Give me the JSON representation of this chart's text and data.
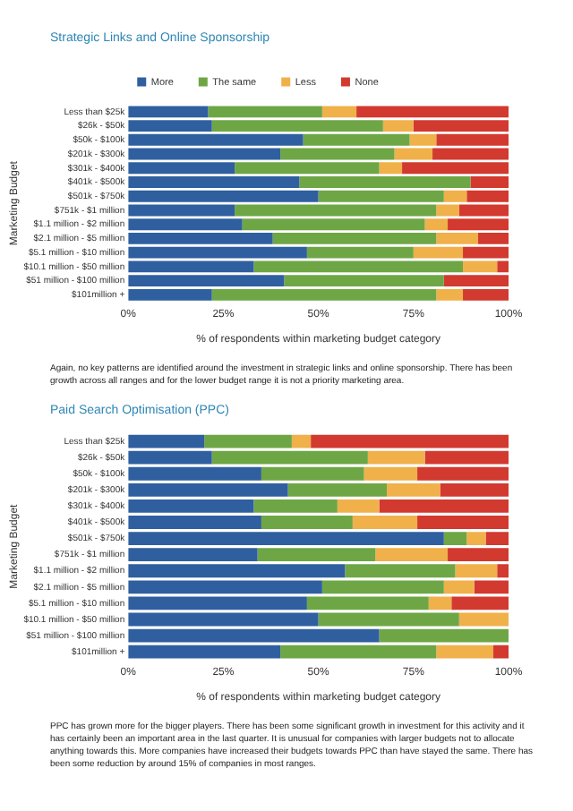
{
  "chart_data": [
    {
      "type": "bar",
      "orientation": "horizontal",
      "stacked": true,
      "title": "Strategic Links and Online Sponsorship",
      "xlabel": "% of respondents within marketing budget category",
      "ylabel": "Marketing Budget",
      "categories": [
        "Less than $25k",
        "$26k - $50k",
        "$50k - $100k",
        "$201k - $300k",
        "$301k - $400k",
        "$401k - $500k",
        "$501k - $750k",
        "$751k - $1 million",
        "$1.1 million - $2 million",
        "$2.1 million - $5 million",
        "$5.1 million - $10 million",
        "$10.1 million - $50 million",
        "$51 million - $100 million",
        "$101million +"
      ],
      "series": [
        {
          "name": "More",
          "color": "#2f5f9f",
          "values": [
            21,
            22,
            46,
            40,
            28,
            45,
            50,
            28,
            30,
            38,
            47,
            33,
            41,
            22
          ]
        },
        {
          "name": "The same",
          "color": "#6ea646",
          "values": [
            30,
            45,
            28,
            30,
            38,
            45,
            33,
            53,
            48,
            43,
            28,
            55,
            42,
            59
          ]
        },
        {
          "name": "Less",
          "color": "#f0b04a",
          "values": [
            9,
            8,
            7,
            10,
            6,
            0,
            6,
            6,
            6,
            11,
            13,
            9,
            0,
            7
          ]
        },
        {
          "name": "None",
          "color": "#d2392f",
          "values": [
            40,
            25,
            19,
            20,
            28,
            10,
            11,
            13,
            16,
            8,
            12,
            3,
            17,
            12
          ]
        }
      ],
      "xlim": [
        0,
        100
      ],
      "xticks": [
        {
          "value": 0,
          "label": "0%"
        },
        {
          "value": 25,
          "label": "25%"
        },
        {
          "value": 50,
          "label": "50%"
        },
        {
          "value": 75,
          "label": "75%"
        },
        {
          "value": 100,
          "label": "100%"
        }
      ],
      "grid": false,
      "legend": "top",
      "annotations": [
        "Again, no key patterns are identified around the investment in strategic links and online sponsorship. There has been growth across all ranges and for the lower budget range it is not a priority marketing area."
      ]
    },
    {
      "type": "bar",
      "orientation": "horizontal",
      "stacked": true,
      "title": "Paid Search Optimisation (PPC)",
      "xlabel": "% of respondents within marketing budget category",
      "ylabel": "Marketing Budget",
      "categories": [
        "Less than $25k",
        "$26k - $50k",
        "$50k - $100k",
        "$201k - $300k",
        "$301k - $400k",
        "$401k - $500k",
        "$501k - $750k",
        "$751k - $1 million",
        "$1.1 million - $2 million",
        "$2.1 million - $5 million",
        "$5.1 million - $10 million",
        "$10.1 million - $50 million",
        "$51 million - $100 million",
        "$101million +"
      ],
      "series": [
        {
          "color": "#2f5f9f",
          "values": [
            20,
            22,
            35,
            42,
            33,
            35,
            83,
            34,
            57,
            51,
            47,
            50,
            66,
            40
          ]
        },
        {
          "color": "#6ea646",
          "values": [
            23,
            41,
            27,
            26,
            22,
            24,
            6,
            31,
            29,
            32,
            32,
            37,
            34,
            41
          ]
        },
        {
          "color": "#f0b04a",
          "values": [
            5,
            15,
            14,
            14,
            11,
            17,
            5,
            19,
            11,
            8,
            6,
            13,
            0,
            15
          ]
        },
        {
          "color": "#d2392f",
          "values": [
            52,
            22,
            24,
            18,
            34,
            24,
            6,
            16,
            3,
            9,
            15,
            0,
            0,
            4
          ]
        }
      ],
      "xlim": [
        0,
        100
      ],
      "xticks": [
        {
          "value": 0,
          "label": "0%"
        },
        {
          "value": 25,
          "label": "25%"
        },
        {
          "value": 50,
          "label": "50%"
        },
        {
          "value": 75,
          "label": "75%"
        },
        {
          "value": 100,
          "label": "100%"
        }
      ],
      "grid": false,
      "annotations": [
        "PPC has grown more for the bigger players. There has been some significant growth in investment for this activity and it has certainly been an important area in the last quarter. It is unusual for companies with larger budgets not to allocate anything towards this. More companies have increased their budgets towards PPC than have stayed the same. There has been some reduction by around 15% of companies in most ranges."
      ]
    }
  ]
}
